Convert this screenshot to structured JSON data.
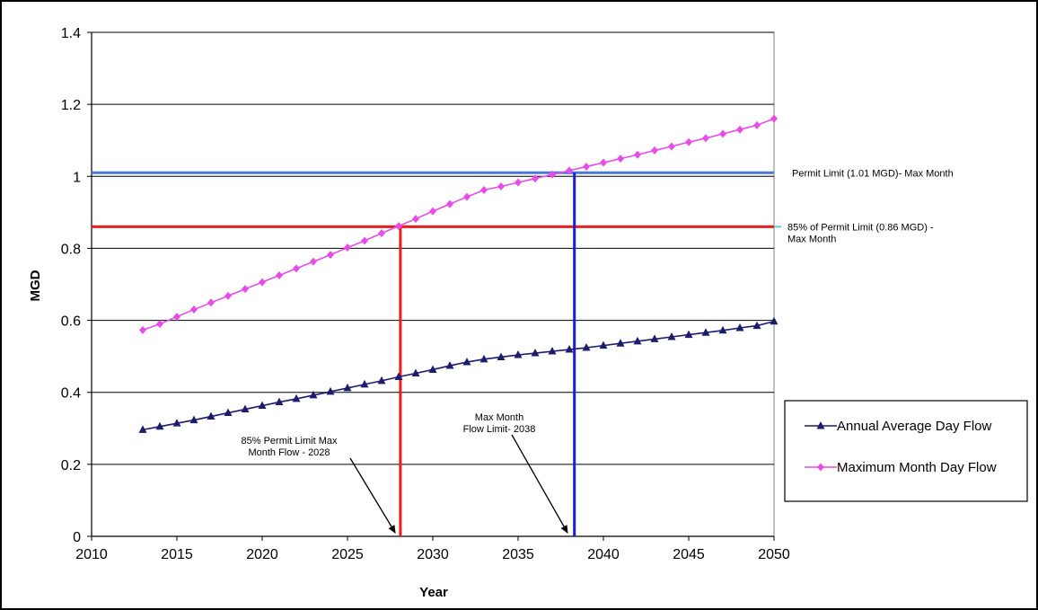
{
  "chart_data": {
    "type": "line",
    "xlabel": "Year",
    "ylabel": "MGD",
    "xlim": [
      2010,
      2050
    ],
    "ylim": [
      0,
      1.4
    ],
    "xticks": [
      2010,
      2015,
      2020,
      2025,
      2030,
      2035,
      2040,
      2045,
      2050
    ],
    "yticks": [
      "0",
      "0.2",
      "0.4",
      "0.6",
      "0.8",
      "1",
      "1.2",
      "1.4"
    ],
    "grid": "horizontal",
    "legend_position": "right",
    "x": [
      2013,
      2014,
      2015,
      2016,
      2017,
      2018,
      2019,
      2020,
      2021,
      2022,
      2023,
      2024,
      2025,
      2026,
      2027,
      2028,
      2029,
      2030,
      2031,
      2032,
      2033,
      2034,
      2035,
      2036,
      2037,
      2038,
      2039,
      2040,
      2041,
      2042,
      2043,
      2044,
      2045,
      2046,
      2047,
      2048,
      2049,
      2050
    ],
    "series": [
      {
        "name": "Annual Average Day Flow",
        "color": "#1c1c6b",
        "marker": "triangle",
        "values": [
          0.296,
          0.305,
          0.314,
          0.323,
          0.333,
          0.343,
          0.353,
          0.363,
          0.373,
          0.382,
          0.392,
          0.402,
          0.412,
          0.422,
          0.432,
          0.443,
          0.453,
          0.463,
          0.474,
          0.484,
          0.492,
          0.498,
          0.504,
          0.509,
          0.514,
          0.519,
          0.524,
          0.53,
          0.536,
          0.542,
          0.548,
          0.554,
          0.56,
          0.566,
          0.572,
          0.579,
          0.585,
          0.597
        ]
      },
      {
        "name": "Maximum Month Day Flow",
        "color": "#e84ce8",
        "marker": "diamond",
        "values": [
          0.573,
          0.59,
          0.61,
          0.63,
          0.649,
          0.668,
          0.687,
          0.706,
          0.725,
          0.744,
          0.763,
          0.782,
          0.802,
          0.821,
          0.842,
          0.862,
          0.882,
          0.903,
          0.923,
          0.943,
          0.962,
          0.972,
          0.983,
          0.994,
          1.005,
          1.016,
          1.027,
          1.038,
          1.049,
          1.06,
          1.072,
          1.083,
          1.095,
          1.106,
          1.118,
          1.13,
          1.142,
          1.16
        ]
      }
    ],
    "reference_lines": [
      {
        "orientation": "horizontal",
        "value": 1.01,
        "color": "#4a78d8",
        "label": "Permit Limit (1.01 MGD)- Max Month"
      },
      {
        "orientation": "horizontal",
        "value": 0.86,
        "color": "#ee1c1c",
        "label_lines": [
          "85% of Permit Limit (0.86 MGD) -",
          "Max Month"
        ]
      },
      {
        "orientation": "vertical",
        "value": 2028.1,
        "from": 0,
        "to": 0.86,
        "color": "#ee1c1c"
      },
      {
        "orientation": "vertical",
        "value": 2038.3,
        "from": 0,
        "to": 1.01,
        "color": "#1c1cd8"
      }
    ],
    "annotations": [
      {
        "lines": [
          "85% Permit Limit Max",
          "Month Flow   - 2028"
        ],
        "arrow_to": [
          2027.9,
          0
        ]
      },
      {
        "lines": [
          "Max Month",
          "Flow Limit- 2038"
        ],
        "arrow_to": [
          2038.0,
          0
        ]
      }
    ]
  }
}
